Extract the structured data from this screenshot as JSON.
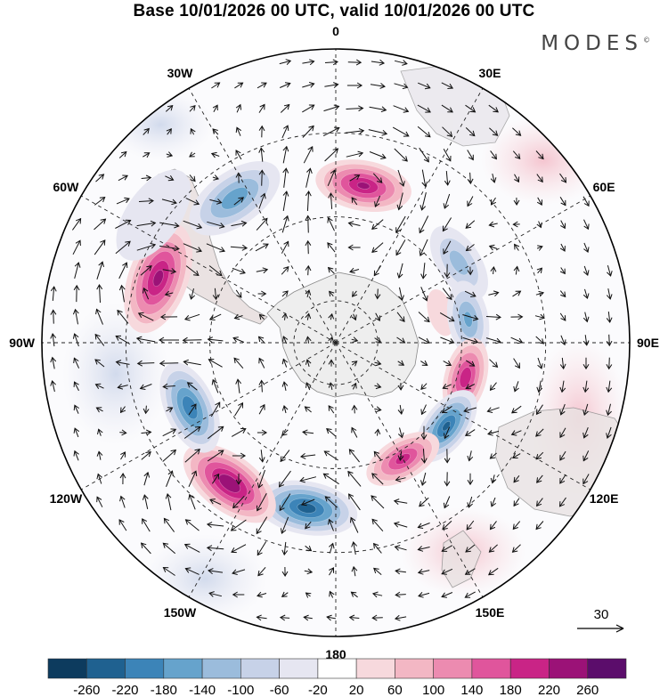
{
  "title": "Base 10/01/2026 00 UTC, valid 10/01/2026 00 UTC",
  "brand": "MODES",
  "brand_mark": "©",
  "chart_data": {
    "type": "heatmap",
    "title": "Base 10/01/2026 00 UTC, valid 10/01/2026 00 UTC",
    "projection": "south polar stereographic",
    "longitude_labels": [
      "0",
      "30E",
      "60E",
      "90E",
      "120E",
      "150E",
      "180",
      "150W",
      "120W",
      "90W",
      "60W",
      "30W"
    ],
    "colorbar_ticks": [
      -260,
      -220,
      -180,
      -140,
      -100,
      -60,
      -20,
      20,
      60,
      100,
      140,
      180,
      220,
      260
    ],
    "colorbar_colors": [
      "#0d3b5e",
      "#1f6190",
      "#3c84b8",
      "#66a3cc",
      "#9bbcdc",
      "#c7d2e8",
      "#e6e6f1",
      "#ffffff",
      "#f7d9dd",
      "#f3b7c4",
      "#ec8bb0",
      "#e0559c",
      "#c92486",
      "#9b1277",
      "#5b0d6b"
    ],
    "anomalies": [
      {
        "lon": 10,
        "lat": -52,
        "value": 230
      },
      {
        "lon": 57,
        "lat": -55,
        "value": -120
      },
      {
        "lon": 74,
        "lat": -64,
        "value": 40
      },
      {
        "lon": 80,
        "lat": -58,
        "value": -150
      },
      {
        "lon": 105,
        "lat": -58,
        "value": 215
      },
      {
        "lon": 127,
        "lat": -57,
        "value": -230
      },
      {
        "lon": 150,
        "lat": -58,
        "value": 200
      },
      {
        "lon": 190,
        "lat": -50,
        "value": -245
      },
      {
        "lon": 217,
        "lat": -48,
        "value": 260
      },
      {
        "lon": 246,
        "lat": -52,
        "value": -215
      },
      {
        "lon": 290,
        "lat": -45,
        "value": 235
      },
      {
        "lon": 305,
        "lat": -37,
        "value": -60
      },
      {
        "lon": 325,
        "lat": -48,
        "value": -170
      }
    ],
    "wind_reference": {
      "value": 30,
      "label": "30"
    }
  }
}
